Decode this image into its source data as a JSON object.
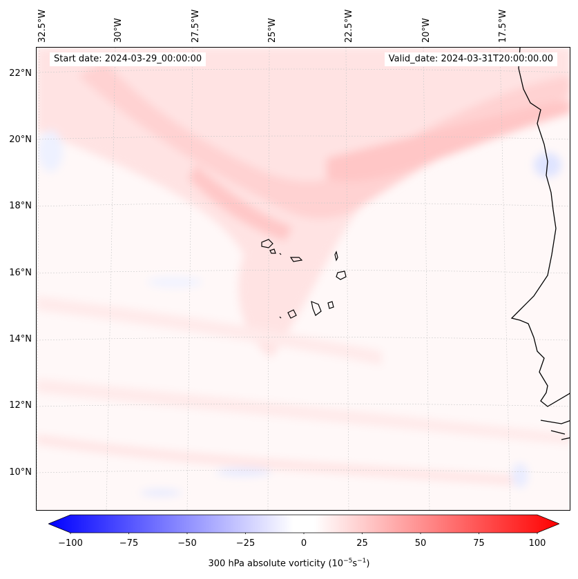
{
  "map": {
    "start_date_label": "Start date: 2024-03-29_00:00:00",
    "valid_date_label": "Valid_date: 2024-03-31T20:00:00.00",
    "variable": "300 hPa absolute vorticity",
    "lon_labels": [
      "32.5°W",
      "30°W",
      "27.5°W",
      "25°W",
      "22.5°W",
      "20°W",
      "17.5°W"
    ],
    "lat_labels": [
      "22°N",
      "20°N",
      "18°N",
      "16°N",
      "14°N",
      "12°N",
      "10°N"
    ]
  },
  "colorbar": {
    "tick_labels": [
      "−100",
      "−75",
      "−50",
      "−25",
      "0",
      "25",
      "50",
      "75",
      "100"
    ],
    "title_prefix": "300 hPa absolute vorticity (10",
    "title_exp1": "−5",
    "title_mid": "s",
    "title_exp2": "−1",
    "title_suffix": ")",
    "min": -100,
    "max": 100,
    "colors": {
      "negative": "#0000ff",
      "zero": "#ffffff",
      "positive": "#ff0000"
    }
  }
}
